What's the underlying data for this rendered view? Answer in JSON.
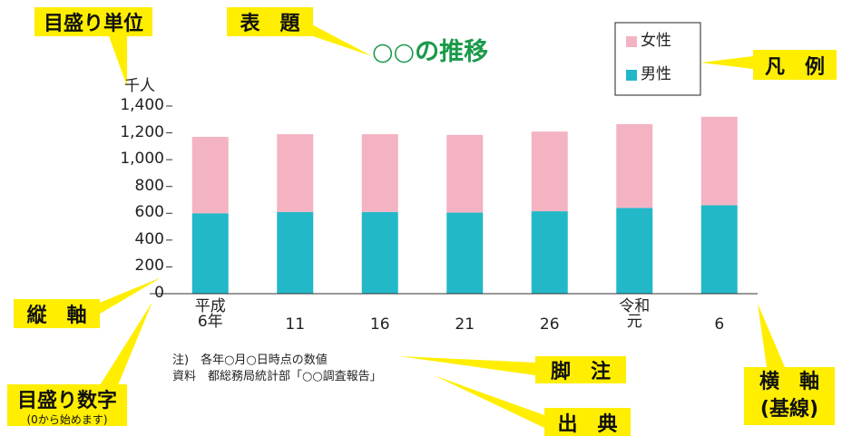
{
  "chart_data": {
    "type": "stacked_bar",
    "title": "○○の推移",
    "y_unit": "千人",
    "categories": [
      "平成\n6年",
      "11",
      "16",
      "21",
      "26",
      "令和\n元",
      "6"
    ],
    "series": [
      {
        "name": "男性",
        "color": "#22b8c8",
        "values": [
          600,
          610,
          610,
          605,
          615,
          640,
          660
        ]
      },
      {
        "name": "女性",
        "color": "#f4b3c2",
        "values": [
          570,
          580,
          580,
          580,
          595,
          625,
          660
        ]
      }
    ],
    "ylim": [
      0,
      1400
    ],
    "yticks": [
      0,
      200,
      400,
      600,
      800,
      {
        "value": 1000,
        "label": "1,000"
      },
      {
        "value": 1200,
        "label": "1,200"
      },
      {
        "value": 1400,
        "label": "1,400"
      }
    ],
    "legend": "top-right",
    "notes": [
      "注)　各年○月○日時点の数値",
      "資料　都総務局統計部「○○調査報告」"
    ]
  },
  "annotations": {
    "unit": "目盛り単位",
    "title": "表　題",
    "legend": "凡　例",
    "y_axis": "縦　軸",
    "tick_numbers": "目盛り数字",
    "tick_numbers_note": "(0から始めます)",
    "x_axis": "横　軸\n(基線)",
    "footnote": "脚　注",
    "source": "出　典"
  }
}
